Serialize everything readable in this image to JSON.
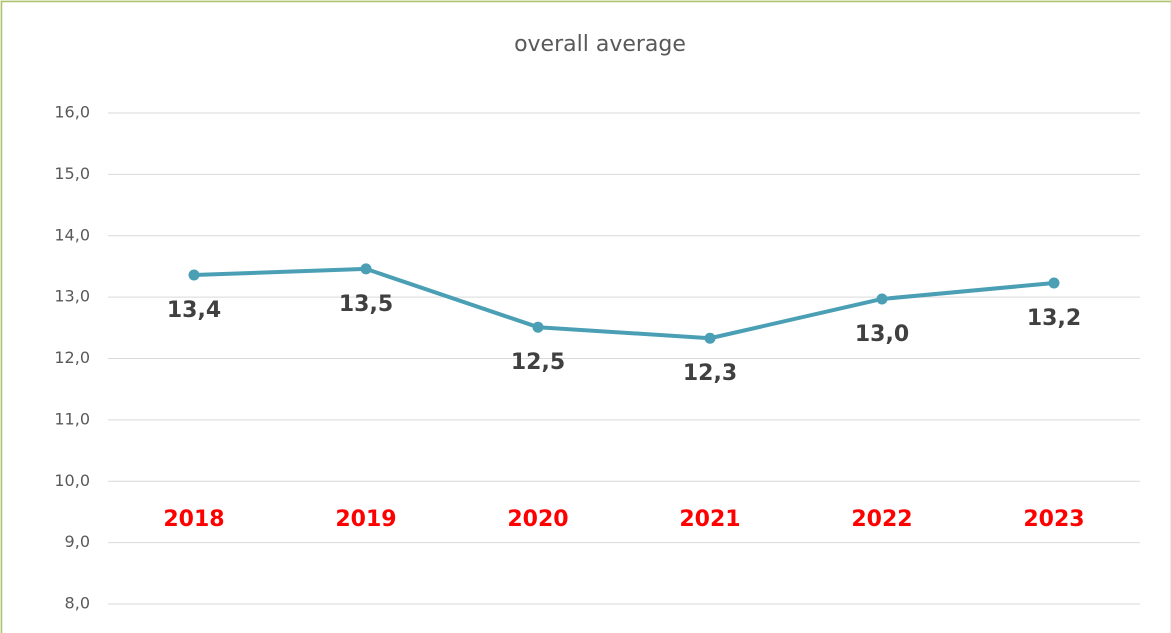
{
  "chart_data": {
    "type": "line",
    "title": "overall average",
    "categories": [
      "2018",
      "2019",
      "2020",
      "2021",
      "2022",
      "2023"
    ],
    "values": [
      13.36,
      13.46,
      12.51,
      12.33,
      12.97,
      13.23
    ],
    "value_labels": [
      "13,4",
      "13,5",
      "12,5",
      "12,3",
      "13,0",
      "13,2"
    ],
    "color": "#4a9fb5",
    "category_label_color": "#ff0000",
    "ylim": [
      8,
      16
    ],
    "yticks": [
      {
        "value": 8,
        "label": "8,0"
      },
      {
        "value": 9,
        "label": "9,0"
      },
      {
        "value": 10,
        "label": "10,0"
      },
      {
        "value": 11,
        "label": "11,0"
      },
      {
        "value": 12,
        "label": "12,0"
      },
      {
        "value": 13,
        "label": "13,0"
      },
      {
        "value": 14,
        "label": "14,0"
      },
      {
        "value": 15,
        "label": "15,0"
      },
      {
        "value": 16,
        "label": "16,0"
      }
    ],
    "grid": true
  }
}
